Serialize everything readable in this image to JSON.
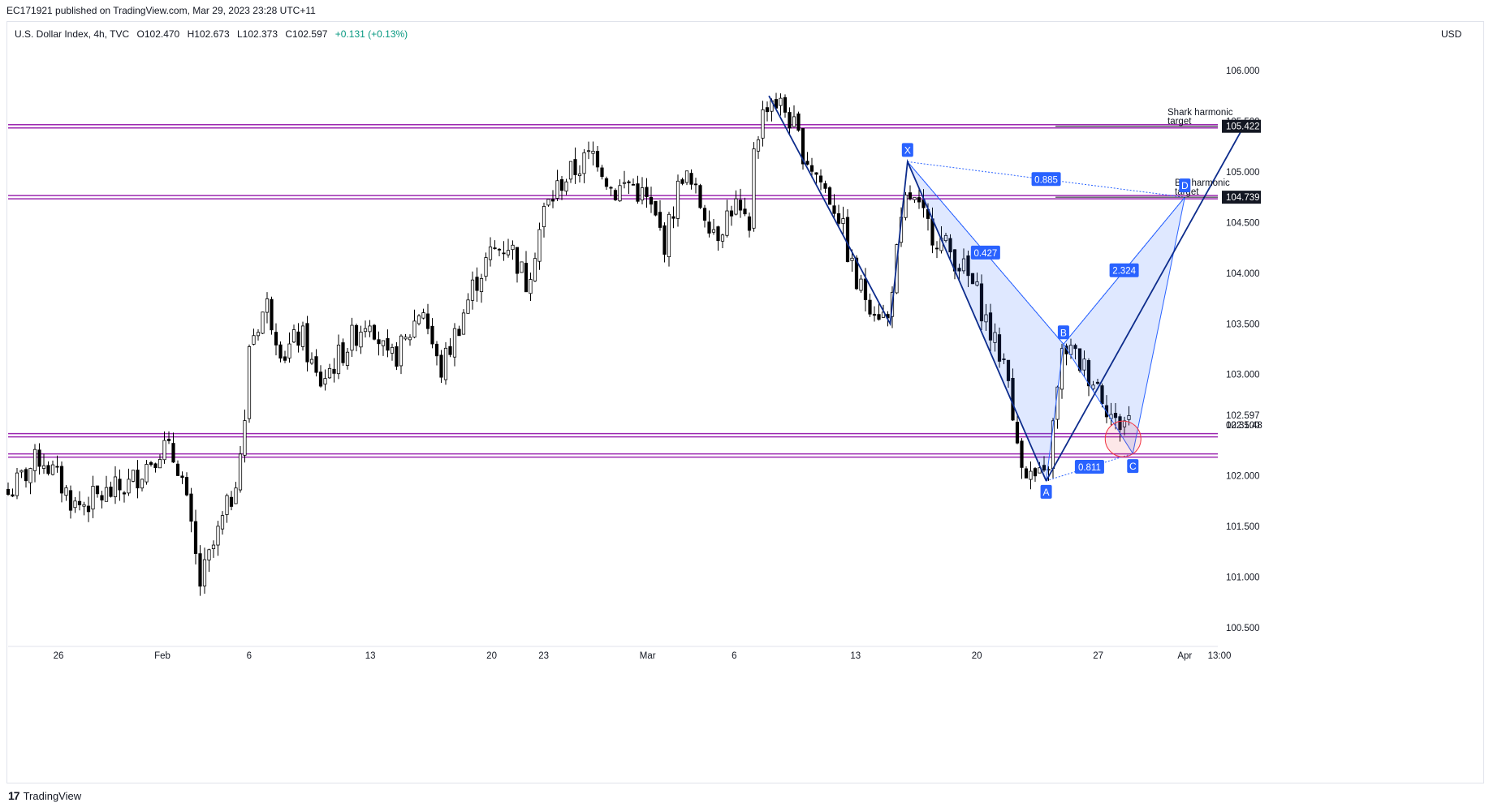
{
  "publisher": "EC171921 published on TradingView.com, Mar 29, 2023 23:28 UTC+11",
  "legend": {
    "symbol": "U.S. Dollar Index, 4h, TVC",
    "open": "O102.470",
    "high": "H102.673",
    "low": "L102.373",
    "close": "C102.597",
    "change": "+0.131 (+0.13%)"
  },
  "currency": "USD",
  "footer": {
    "logo_text": "TradingView",
    "logo_mark": "17"
  },
  "colors": {
    "up": "#ffffff",
    "down": "#000000",
    "zone": "#9c27b0",
    "harmonic_fill": "#2962ff",
    "navy": "#0d2c8c",
    "badge": "#2962ff",
    "reversal_zone": "#f23645"
  },
  "chart_data": {
    "type": "candlestick",
    "title": "U.S. Dollar Index, 4h, TVC",
    "ylim": [
      100.25,
      106.3
    ],
    "y_ticks": [
      "106.000",
      "105.500",
      "105.000",
      "104.500",
      "104.000",
      "103.500",
      "103.000",
      "102.500",
      "102.000",
      "101.500",
      "101.000",
      "100.500"
    ],
    "x_ticks": [
      {
        "label": "26",
        "x": "2023-01-26"
      },
      {
        "label": "Feb",
        "x": "2023-02-01"
      },
      {
        "label": "6",
        "x": "2023-02-06"
      },
      {
        "label": "13",
        "x": "2023-02-13"
      },
      {
        "label": "20",
        "x": "2023-02-20"
      },
      {
        "label": "23",
        "x": "2023-02-23"
      },
      {
        "label": "Mar",
        "x": "2023-03-01"
      },
      {
        "label": "6",
        "x": "2023-03-06"
      },
      {
        "label": "13",
        "x": "2023-03-13"
      },
      {
        "label": "20",
        "x": "2023-03-20"
      },
      {
        "label": "27",
        "x": "2023-03-27"
      },
      {
        "label": "Apr",
        "x": "2023-04-01"
      },
      {
        "label": "13:00",
        "x": "2023-04-03"
      }
    ],
    "price_path": [
      [
        "2023-01-23",
        101.8
      ],
      [
        "2023-01-25",
        102.2
      ],
      [
        "2023-01-27",
        101.7
      ],
      [
        "2023-01-30",
        101.9
      ],
      [
        "2023-02-01",
        102.3
      ],
      [
        "2023-02-02",
        102.1
      ],
      [
        "2023-02-03",
        101.1
      ],
      [
        "2023-02-03",
        100.85
      ],
      [
        "2023-02-05",
        101.8
      ],
      [
        "2023-02-06",
        102.7
      ],
      [
        "2023-02-06",
        103.3
      ],
      [
        "2023-02-07",
        103.7
      ],
      [
        "2023-02-08",
        103.2
      ],
      [
        "2023-02-09",
        103.4
      ],
      [
        "2023-02-10",
        102.9
      ],
      [
        "2023-02-13",
        103.6
      ],
      [
        "2023-02-14",
        103.1
      ],
      [
        "2023-02-15",
        103.3
      ],
      [
        "2023-02-16",
        103.7
      ],
      [
        "2023-02-17",
        103.0
      ],
      [
        "2023-02-19",
        103.9
      ],
      [
        "2023-02-20",
        104.2
      ],
      [
        "2023-02-21",
        104.3
      ],
      [
        "2023-02-22",
        103.9
      ],
      [
        "2023-02-23",
        104.6
      ],
      [
        "2023-02-24",
        104.9
      ],
      [
        "2023-02-26",
        105.2
      ],
      [
        "2023-02-27",
        104.8
      ],
      [
        "2023-02-28",
        104.9
      ],
      [
        "2023-03-01",
        104.7
      ],
      [
        "2023-03-02",
        104.3
      ],
      [
        "2023-03-03",
        105.0
      ],
      [
        "2023-03-05",
        104.4
      ],
      [
        "2023-03-06",
        104.7
      ],
      [
        "2023-03-07",
        104.3
      ],
      [
        "2023-03-07",
        105.2
      ],
      [
        "2023-03-08",
        105.75
      ],
      [
        "2023-03-09",
        105.6
      ],
      [
        "2023-03-10",
        105.2
      ],
      [
        "2023-03-12",
        104.6
      ],
      [
        "2023-03-13",
        103.9
      ],
      [
        "2023-03-14",
        103.7
      ],
      [
        "2023-03-15",
        103.5
      ],
      [
        "2023-03-15",
        103.8
      ],
      [
        "2023-03-16",
        104.8
      ],
      [
        "2023-03-17",
        104.5
      ],
      [
        "2023-03-19",
        104.1
      ],
      [
        "2023-03-20",
        103.8
      ],
      [
        "2023-03-21",
        103.3
      ],
      [
        "2023-03-22",
        103.0
      ],
      [
        "2023-03-22",
        102.5
      ],
      [
        "2023-03-23",
        102.0
      ],
      [
        "2023-03-24",
        101.95
      ],
      [
        "2023-03-25",
        103.3
      ],
      [
        "2023-03-26",
        103.1
      ],
      [
        "2023-03-27",
        102.9
      ],
      [
        "2023-03-28",
        102.5
      ],
      [
        "2023-03-29",
        102.6
      ]
    ],
    "horizontal_levels": [
      105.45,
      104.75,
      102.4,
      102.2
    ],
    "harmonic_points": [
      {
        "label": "X",
        "x": "2023-03-16",
        "y": 105.1
      },
      {
        "label": "A",
        "x": "2023-03-24",
        "y": 101.95
      },
      {
        "label": "B",
        "x": "2023-03-25",
        "y": 103.3
      },
      {
        "label": "C",
        "x": "2023-03-29",
        "y": 102.22
      },
      {
        "label": "D",
        "x": "2023-04-01",
        "y": 104.75
      }
    ],
    "ratios": [
      "0.885",
      "0.427",
      "2.324",
      "0.811"
    ],
    "price_labels": {
      "shark": "105.422",
      "bat": "104.739",
      "current": "102.597",
      "countdown": "02:31:48"
    },
    "annotations": {
      "shark_line1": "Shark harmonic",
      "shark_line2": "target",
      "bat_line1": "Bat harmonic",
      "bat_line2": "target"
    }
  }
}
